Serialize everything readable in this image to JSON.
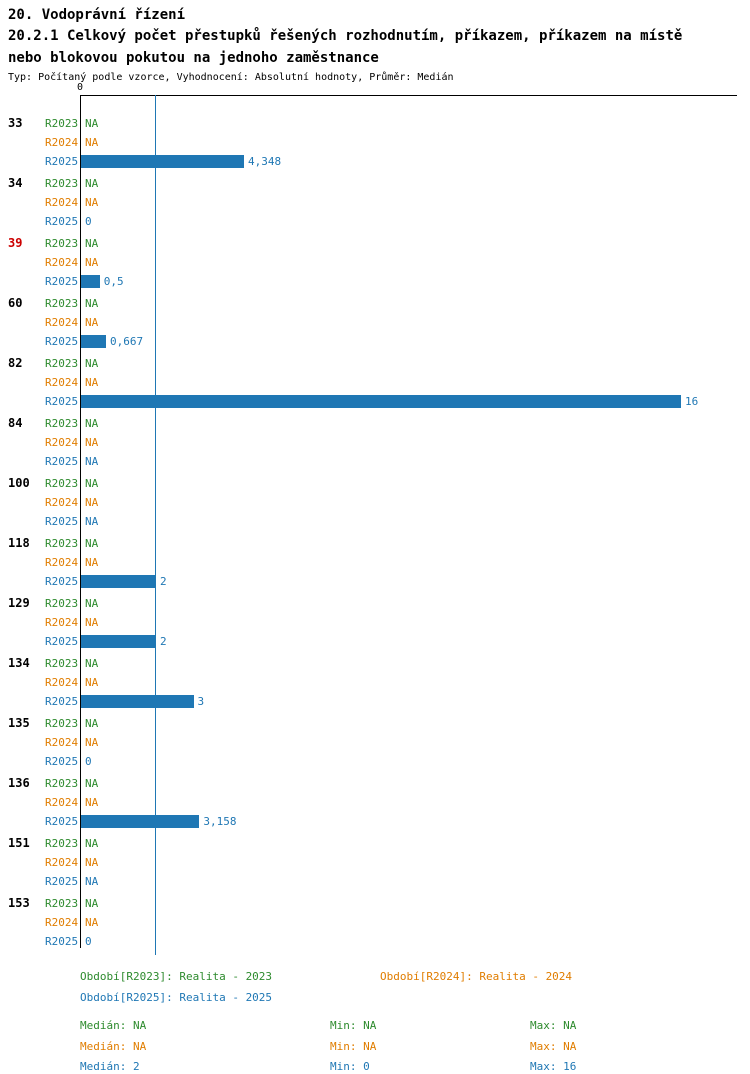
{
  "header": {
    "title": "20. Vodoprávní řízení",
    "subtitle_lines": [
      "20.2.1 Celkový počet přestupků řešených rozhodnutím, příkazem, příkazem na místě",
      "nebo blokovou pokutou na jednoho zaměstnance"
    ],
    "meta": "Typ: Počítaný podle vzorce, Vyhodnocení: Absolutní hodnoty, Průměr: Medián"
  },
  "chart_data": {
    "type": "bar",
    "orientation": "horizontal",
    "title": "20.2.1 Celkový počet přestupků řešených rozhodnutím, příkazem, příkazem na místě nebo blokovou pokutou na jednoho zaměstnance",
    "xlabel": "",
    "ylabel": "",
    "xlim": [
      0,
      17.5
    ],
    "x_origin_label": "0",
    "median_line_value": 2,
    "grid": false,
    "series": [
      "R2023",
      "R2024",
      "R2025"
    ],
    "colors": {
      "r2023": "#2e8b2e",
      "r2024": "#e07d00",
      "r2025": "#1f77b4",
      "bar": "#1f77b4",
      "axis": "#000000",
      "category": "#000000",
      "category_highlight": "#cc0000",
      "median_line": "#1f77b4"
    },
    "rows": [
      {
        "category": "33",
        "highlight": false,
        "values": [
          null,
          null,
          4.348
        ],
        "labels": [
          "NA",
          "NA",
          "4,348"
        ]
      },
      {
        "category": "34",
        "highlight": false,
        "values": [
          null,
          null,
          0
        ],
        "labels": [
          "NA",
          "NA",
          "0"
        ]
      },
      {
        "category": "39",
        "highlight": true,
        "values": [
          null,
          null,
          0.5
        ],
        "labels": [
          "NA",
          "NA",
          "0,5"
        ]
      },
      {
        "category": "60",
        "highlight": false,
        "values": [
          null,
          null,
          0.667
        ],
        "labels": [
          "NA",
          "NA",
          "0,667"
        ]
      },
      {
        "category": "82",
        "highlight": false,
        "values": [
          null,
          null,
          16
        ],
        "labels": [
          "NA",
          "NA",
          "16"
        ]
      },
      {
        "category": "84",
        "highlight": false,
        "values": [
          null,
          null,
          null
        ],
        "labels": [
          "NA",
          "NA",
          "NA"
        ]
      },
      {
        "category": "100",
        "highlight": false,
        "values": [
          null,
          null,
          null
        ],
        "labels": [
          "NA",
          "NA",
          "NA"
        ]
      },
      {
        "category": "118",
        "highlight": false,
        "values": [
          null,
          null,
          2
        ],
        "labels": [
          "NA",
          "NA",
          "2"
        ]
      },
      {
        "category": "129",
        "highlight": false,
        "values": [
          null,
          null,
          2
        ],
        "labels": [
          "NA",
          "NA",
          "2"
        ]
      },
      {
        "category": "134",
        "highlight": false,
        "values": [
          null,
          null,
          3
        ],
        "labels": [
          "NA",
          "NA",
          "3"
        ]
      },
      {
        "category": "135",
        "highlight": false,
        "values": [
          null,
          null,
          0
        ],
        "labels": [
          "NA",
          "NA",
          "0"
        ]
      },
      {
        "category": "136",
        "highlight": false,
        "values": [
          null,
          null,
          3.158
        ],
        "labels": [
          "NA",
          "NA",
          "3,158"
        ]
      },
      {
        "category": "151",
        "highlight": false,
        "values": [
          null,
          null,
          null
        ],
        "labels": [
          "NA",
          "NA",
          "NA"
        ]
      },
      {
        "category": "153",
        "highlight": false,
        "values": [
          null,
          null,
          0
        ],
        "labels": [
          "NA",
          "NA",
          "0"
        ]
      }
    ]
  },
  "legend": {
    "periods": [
      {
        "series": "R2023",
        "label": "Období[R2023]: Realita - 2023"
      },
      {
        "series": "R2024",
        "label": "Období[R2024]: Realita - 2024"
      },
      {
        "series": "R2025",
        "label": "Období[R2025]: Realita - 2025"
      }
    ],
    "stats": [
      {
        "series": "R2023",
        "median": "Medián: NA",
        "min": "Min: NA",
        "max": "Max: NA"
      },
      {
        "series": "R2024",
        "median": "Medián: NA",
        "min": "Min: NA",
        "max": "Max: NA"
      },
      {
        "series": "R2025",
        "median": "Medián: 2",
        "min": "Min: 0",
        "max": "Max: 16"
      }
    ]
  }
}
